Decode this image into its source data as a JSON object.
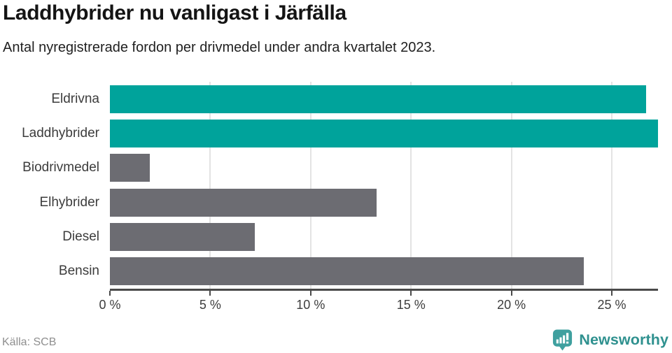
{
  "header": {
    "title": "Laddhybrider nu vanligast i Järfälla",
    "subtitle": "Antal nyregistrerade fordon per drivmedel under andra kvartalet 2023."
  },
  "footer": {
    "source": "Källa: SCB",
    "logo_text": "Newsworthy"
  },
  "colors": {
    "highlight_bar": "#00a39b",
    "default_bar": "#6c6c72",
    "grid": "#e3e3e3",
    "axis": "#4a4a4a",
    "logo_teal": "#3fa09f",
    "logo_text_teal": "#2f918f"
  },
  "chart_data": {
    "type": "bar",
    "orientation": "horizontal",
    "title": "Laddhybrider nu vanligast i Järfälla",
    "subtitle": "Antal nyregistrerade fordon per drivmedel under andra kvartalet 2023.",
    "categories": [
      "Eldrivna",
      "Laddhybrider",
      "Biodrivmedel",
      "Elhybrider",
      "Diesel",
      "Bensin"
    ],
    "values": [
      26.7,
      27.3,
      2.0,
      13.3,
      7.2,
      23.6
    ],
    "unit": "%",
    "highlighted": [
      "Eldrivna",
      "Laddhybrider"
    ],
    "xlabel": "",
    "ylabel": "",
    "xlim": [
      0,
      27.3
    ],
    "x_ticks": [
      0,
      5,
      10,
      15,
      20,
      25
    ],
    "x_tick_labels": [
      "0 %",
      "5 %",
      "10 %",
      "15 %",
      "20 %",
      "25 %"
    ],
    "grid": "vertical",
    "legend": "none"
  }
}
